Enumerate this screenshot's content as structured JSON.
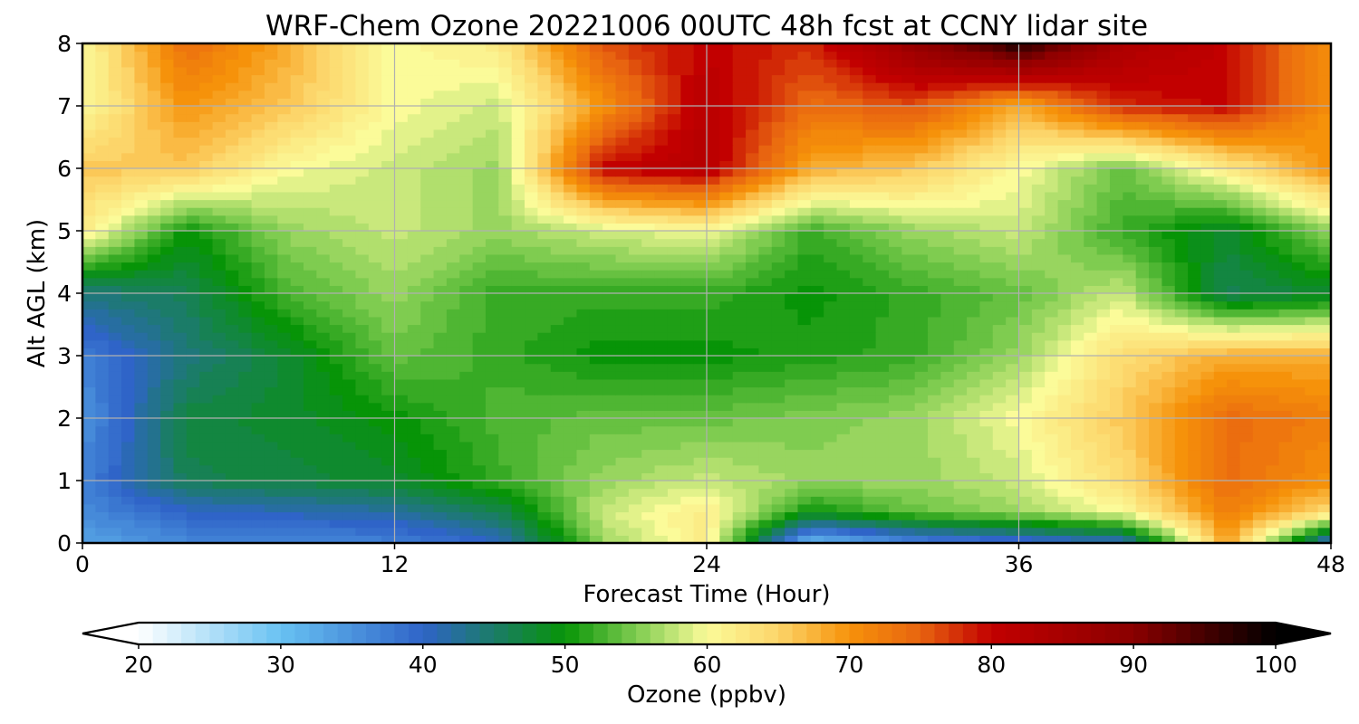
{
  "chart_data": {
    "type": "heatmap",
    "title": "WRF-Chem Ozone  20221006 00UTC 48h fcst at CCNY lidar site",
    "xlabel": "Forecast Time (Hour)",
    "ylabel": "Alt AGL (km)",
    "x": [
      0,
      4,
      8,
      12,
      16,
      20,
      24,
      28,
      32,
      36,
      40,
      44,
      48
    ],
    "y": [
      0,
      0.5,
      1,
      2,
      3,
      4,
      5,
      6,
      7,
      8
    ],
    "xlim": [
      0,
      48
    ],
    "ylim": [
      0,
      8
    ],
    "xticks": [
      "0",
      "12",
      "24",
      "36",
      "48"
    ],
    "yticks": [
      "0",
      "1",
      "2",
      "3",
      "4",
      "5",
      "6",
      "7",
      "8"
    ],
    "grid": true,
    "z": [
      [
        33,
        36,
        36,
        37,
        40,
        56,
        62,
        30,
        36,
        38,
        40,
        69,
        38
      ],
      [
        36,
        40,
        41,
        42,
        46,
        58,
        62,
        50,
        54,
        56,
        60,
        72,
        64
      ],
      [
        37,
        46,
        47,
        48,
        52,
        56,
        58,
        56,
        56,
        58,
        64,
        74,
        70
      ],
      [
        35,
        47,
        48,
        50,
        53,
        54,
        54,
        55,
        56,
        60,
        66,
        74,
        72
      ],
      [
        37,
        44,
        48,
        54,
        52,
        50,
        50,
        51,
        52,
        56,
        64,
        68,
        68
      ],
      [
        44,
        46,
        53,
        56,
        52,
        52,
        52,
        50,
        52,
        54,
        58,
        46,
        48
      ],
      [
        62,
        50,
        56,
        58,
        56,
        58,
        60,
        52,
        56,
        58,
        52,
        48,
        56
      ],
      [
        66,
        66,
        60,
        58,
        56,
        80,
        82,
        68,
        66,
        60,
        54,
        62,
        70
      ],
      [
        60,
        70,
        66,
        60,
        58,
        70,
        82,
        74,
        76,
        68,
        78,
        80,
        70
      ],
      [
        60,
        74,
        68,
        60,
        62,
        76,
        80,
        78,
        88,
        98,
        84,
        80,
        70
      ]
    ],
    "colorbar": {
      "label": "Ozone  (ppbv)",
      "min": 20,
      "max": 100,
      "ticks": [
        "20",
        "30",
        "40",
        "50",
        "60",
        "70",
        "80",
        "90",
        "100"
      ],
      "extend": "both",
      "stops": [
        [
          20,
          "#ffffff"
        ],
        [
          30,
          "#68c2f2"
        ],
        [
          40,
          "#2f64c8"
        ],
        [
          50,
          "#079407"
        ],
        [
          55,
          "#7fcc50"
        ],
        [
          60,
          "#fbfb99"
        ],
        [
          65,
          "#fcd56a"
        ],
        [
          70,
          "#f6920a"
        ],
        [
          75,
          "#e86410"
        ],
        [
          80,
          "#c20000"
        ],
        [
          90,
          "#8a0000"
        ],
        [
          100,
          "#000000"
        ]
      ]
    }
  }
}
